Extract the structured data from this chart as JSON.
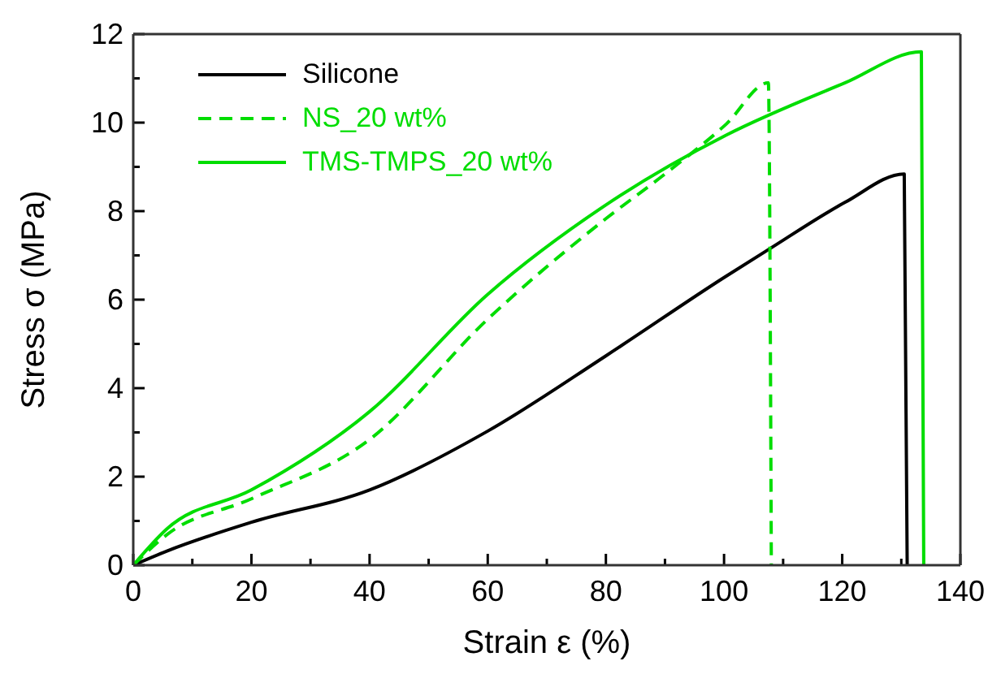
{
  "chart_data": {
    "type": "line",
    "xlabel": "Strain ε (%)",
    "ylabel": "Stress σ (MPa)",
    "xlim": [
      0,
      140
    ],
    "ylim": [
      0,
      12
    ],
    "xticks": [
      0,
      {
        "value": 10,
        "label": null
      },
      20,
      {
        "value": 30,
        "label": null
      },
      40,
      {
        "value": 50,
        "label": null
      },
      60,
      {
        "value": 70,
        "label": null
      },
      80,
      {
        "value": 90,
        "label": null
      },
      100,
      {
        "value": 110,
        "label": null
      },
      120,
      {
        "value": 130,
        "label": null
      },
      140
    ],
    "yticks": [
      0,
      {
        "value": 1,
        "label": null
      },
      2,
      {
        "value": 3,
        "label": null
      },
      4,
      {
        "value": 5,
        "label": null
      },
      6,
      {
        "value": 7,
        "label": null
      },
      8,
      {
        "value": 9,
        "label": null
      },
      10,
      {
        "value": 11,
        "label": null
      },
      12
    ],
    "legend": "top left",
    "marker": "none",
    "series": [
      {
        "name": "Silicone",
        "color": "#000000",
        "line_style": "solid",
        "x": [
          0,
          5.7,
          20,
          40,
          60,
          80,
          100,
          107.5,
          120.5,
          130.5,
          131
        ],
        "values": [
          0,
          0.32,
          0.97,
          1.7,
          3.03,
          4.73,
          6.5,
          7.13,
          8.2,
          8.84,
          0
        ]
      },
      {
        "name": "NS_20 wt%",
        "color": "#00dd00",
        "line_style": "dashed",
        "x": [
          0,
          5.7,
          20,
          40,
          60,
          80,
          90,
          100.4,
          107.5,
          108
        ],
        "values": [
          0,
          0.69,
          1.5,
          2.84,
          5.56,
          7.83,
          8.84,
          9.97,
          10.9,
          0
        ]
      },
      {
        "name": "TMS-TMPS_20 wt%",
        "color": "#00dd00",
        "line_style": "solid",
        "x": [
          0,
          5.7,
          20,
          40,
          60,
          80,
          100.4,
          120.5,
          133.4,
          133.8
        ],
        "values": [
          0,
          0.82,
          1.7,
          3.47,
          6.12,
          8.14,
          9.72,
          10.9,
          11.6,
          0
        ]
      }
    ]
  }
}
